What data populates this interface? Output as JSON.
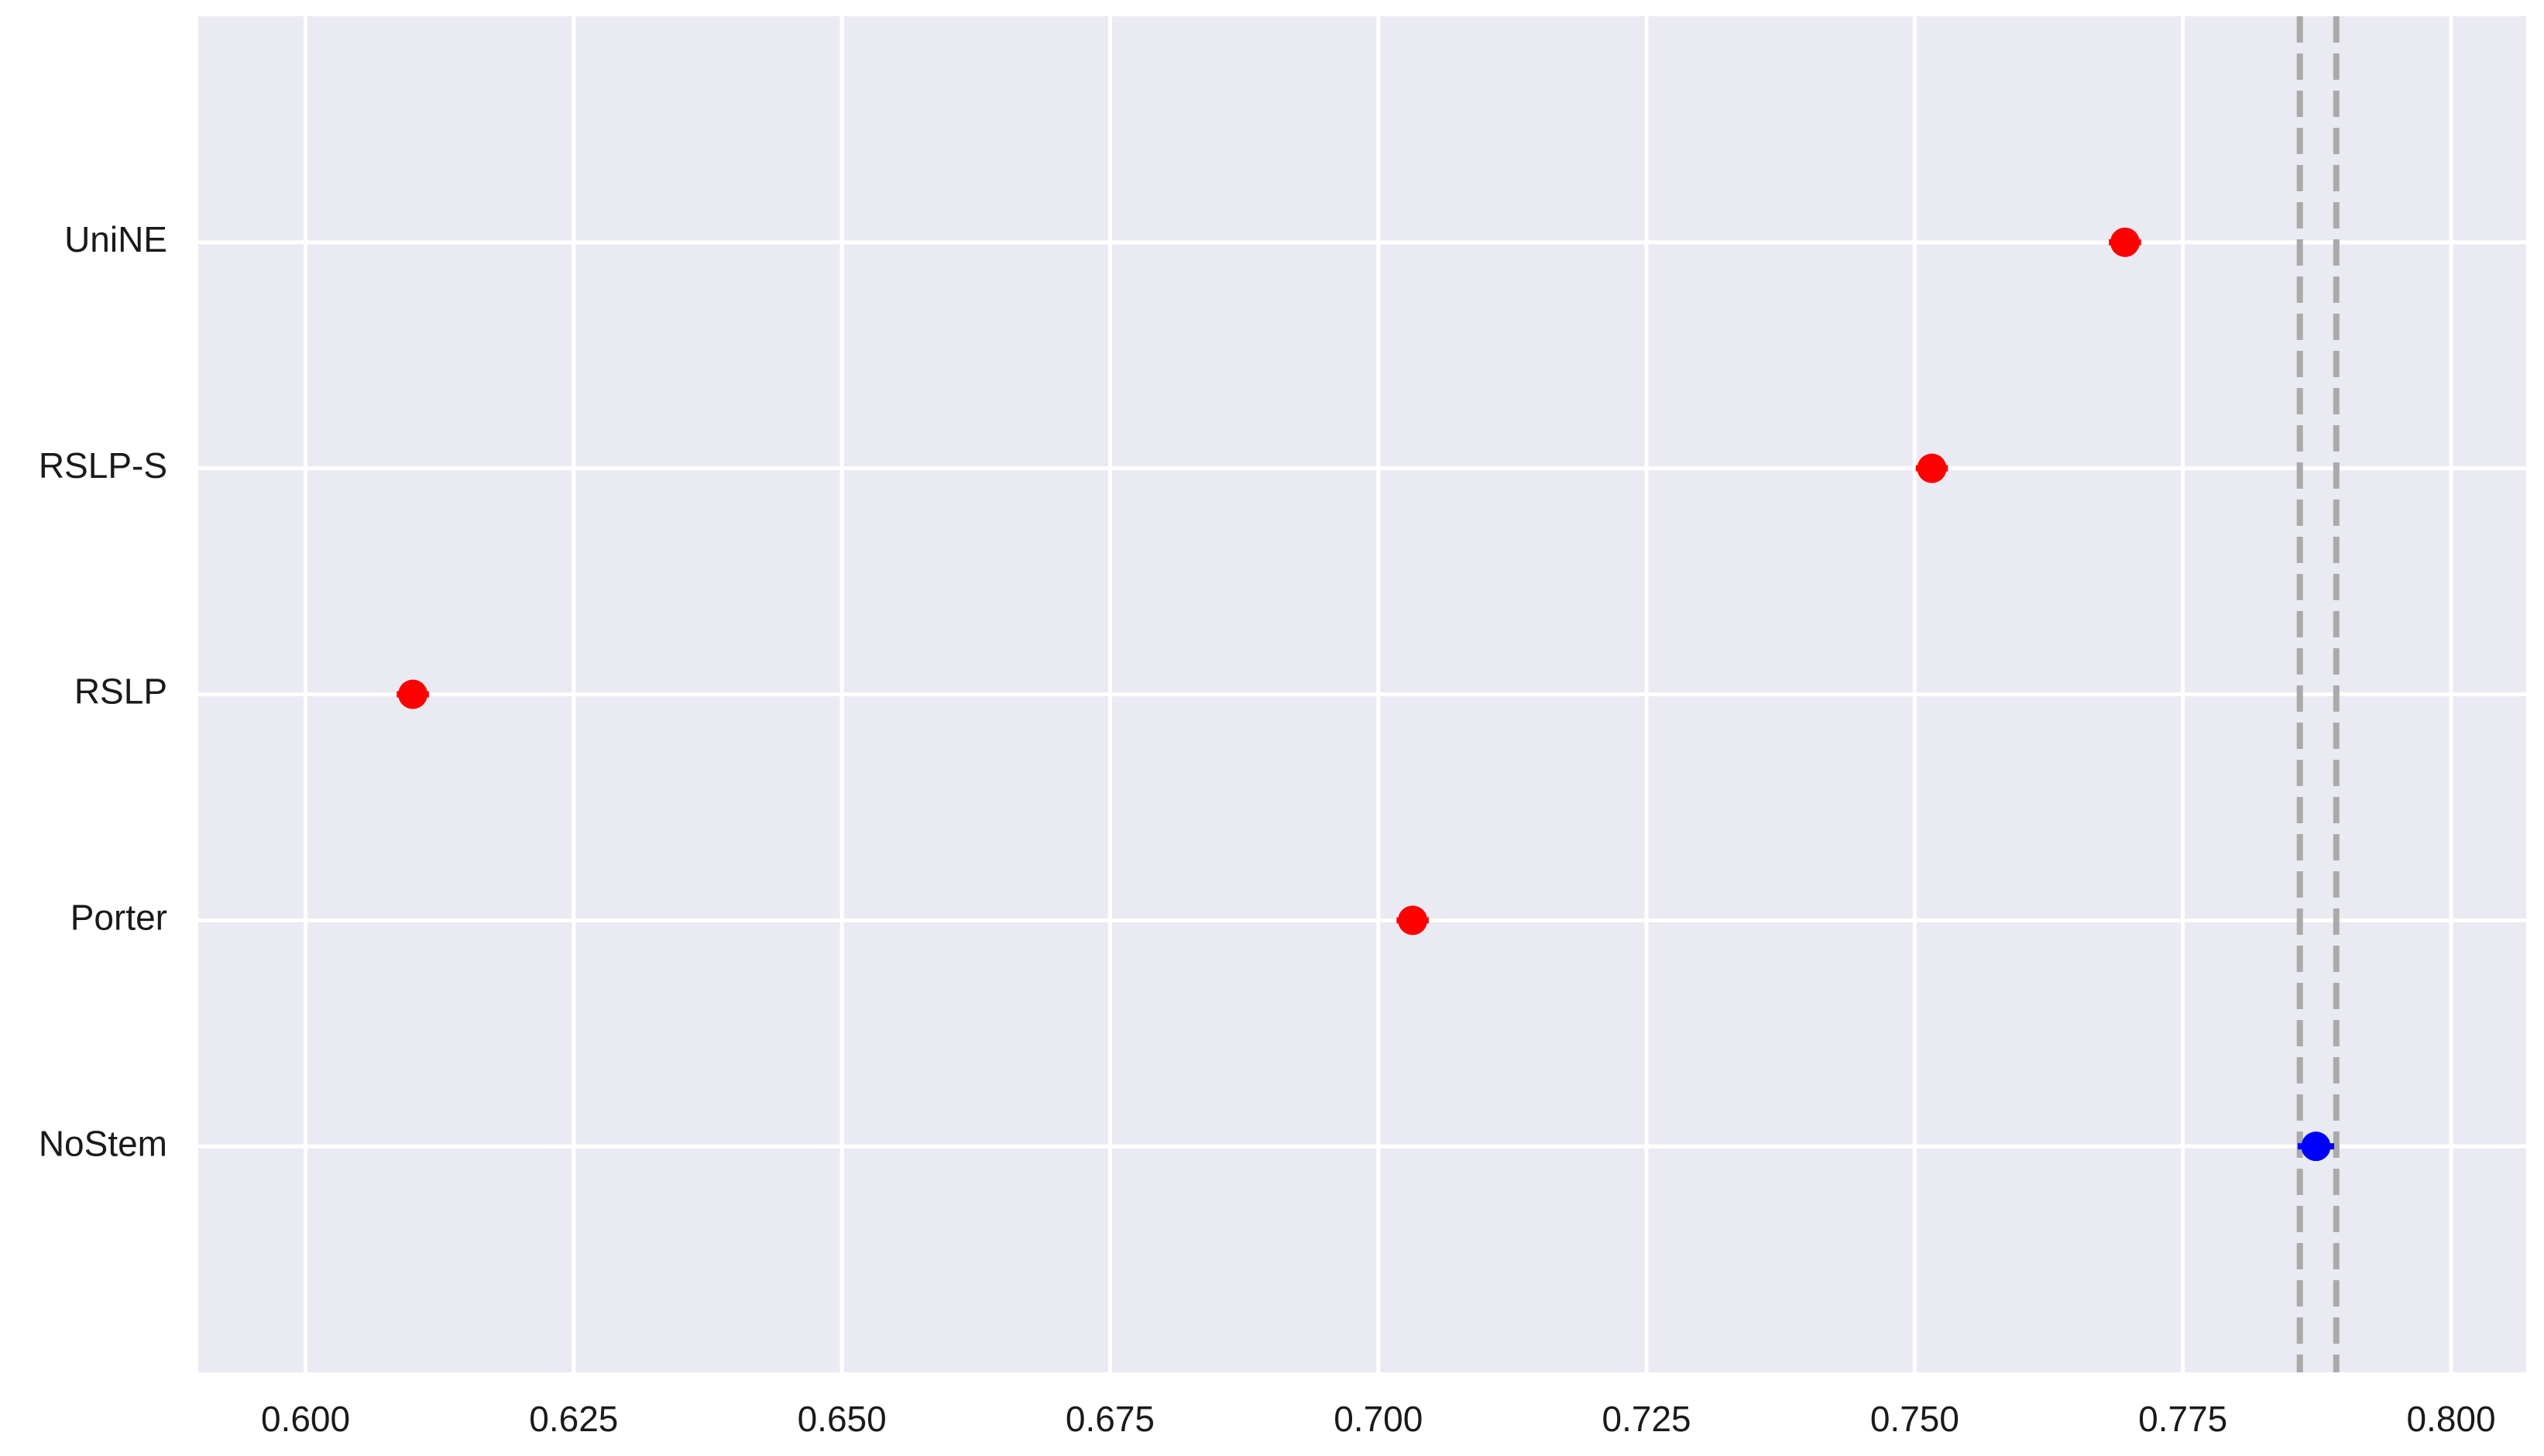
{
  "chart_data": {
    "type": "errorbar_dot",
    "categories": [
      "UniNE",
      "RSLP-S",
      "RSLP",
      "Porter",
      "NoStem"
    ],
    "values": [
      0.7696,
      0.7516,
      0.61,
      0.7032,
      0.7874
    ],
    "errors": [
      0.0015,
      0.0015,
      0.0015,
      0.0015,
      0.0017
    ],
    "colors": [
      "#ff0000",
      "#ff0000",
      "#ff0000",
      "#ff0000",
      "#0000ff"
    ],
    "reference_lines": [
      0.7859,
      0.7893
    ],
    "reference_color": "#aaaaaa",
    "xlim": [
      0.59,
      0.807
    ],
    "xticks": [
      {
        "value": 0.6,
        "label": "0.600"
      },
      {
        "value": 0.625,
        "label": "0.625"
      },
      {
        "value": 0.65,
        "label": "0.650"
      },
      {
        "value": 0.675,
        "label": "0.675"
      },
      {
        "value": 0.7,
        "label": "0.700"
      },
      {
        "value": 0.725,
        "label": "0.725"
      },
      {
        "value": 0.75,
        "label": "0.750"
      },
      {
        "value": 0.775,
        "label": "0.775"
      },
      {
        "value": 0.8,
        "label": "0.800"
      }
    ],
    "grid": true
  }
}
